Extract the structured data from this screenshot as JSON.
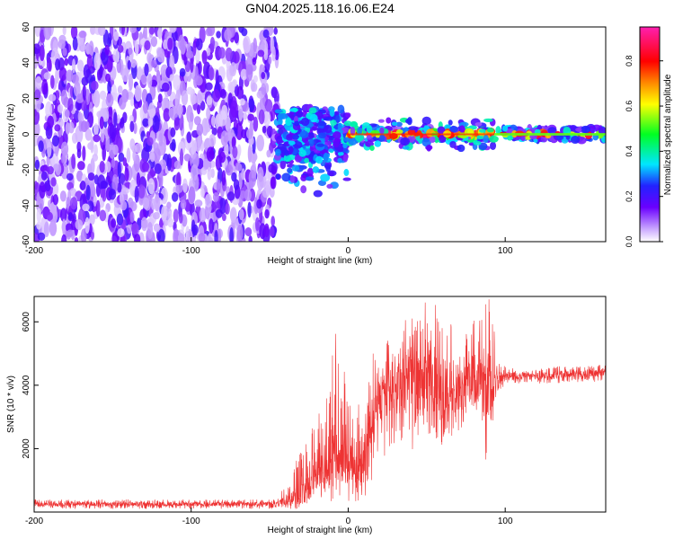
{
  "page": {
    "title": "GN04.2025.118.16.06.E24"
  },
  "colorbar": {
    "label": "Normalized spectral amplitude",
    "ticks": [
      "0.0",
      "0.2",
      "0.4",
      "0.6",
      "0.8"
    ],
    "tick_values": [
      0.0,
      0.2,
      0.4,
      0.6,
      0.8
    ],
    "range": [
      0,
      0.95
    ]
  },
  "chart_data": [
    {
      "type": "heatmap",
      "title": "GN04.2025.118.16.06.E24",
      "xlabel": "Height of straight line (km)",
      "ylabel": "Frequency (Hz)",
      "xlim": [
        -200,
        164
      ],
      "ylim": [
        -60,
        60
      ],
      "x_ticks": [
        -200,
        -100,
        0,
        100
      ],
      "x_tick_labels": [
        "-200",
        "-100",
        "0",
        "100"
      ],
      "y_ticks": [
        -60,
        -40,
        -20,
        0,
        20,
        40,
        60
      ],
      "y_tick_labels": [
        "-60",
        "-40",
        "-20",
        "0",
        "20",
        "40",
        "60"
      ],
      "grid": false,
      "colormap": "white-purple-blue-cyan-green-yellow-red-magenta",
      "regions": [
        {
          "x_range": [
            -200,
            -45
          ],
          "freq_range": [
            -60,
            60
          ],
          "description_level": "noise",
          "amplitude": 0.1
        },
        {
          "x_range": [
            -45,
            0
          ],
          "freq_range": [
            -40,
            12
          ],
          "description_level": "transition",
          "amplitude": 0.25
        },
        {
          "x_range": [
            0,
            93
          ],
          "freq_range": [
            -8,
            8
          ],
          "description_level": "signal-band",
          "amplitude": 0.85
        },
        {
          "x_range": [
            93,
            164
          ],
          "freq_range": [
            -4,
            4
          ],
          "description_level": "steady-band",
          "amplitude": 0.55
        }
      ]
    },
    {
      "type": "line",
      "title": "",
      "xlabel": "Height of straight line (km)",
      "ylabel": "SNR (10 * v/v)",
      "xlim": [
        -200,
        164
      ],
      "ylim": [
        0,
        6800
      ],
      "x_ticks": [
        -200,
        -100,
        0,
        100
      ],
      "x_tick_labels": [
        "-200",
        "-100",
        "0",
        "100"
      ],
      "y_ticks": [
        2000,
        4000,
        6000
      ],
      "y_tick_labels": [
        "2000",
        "4000",
        "6000"
      ],
      "grid": false,
      "color": "#ee3333",
      "envelope": {
        "x": [
          -200,
          -120,
          -45,
          -32,
          -25,
          -20,
          -15,
          -10,
          -5,
          0,
          5,
          10,
          15,
          20,
          25,
          30,
          35,
          40,
          45,
          50,
          55,
          60,
          65,
          70,
          75,
          80,
          85,
          88,
          90,
          92,
          95,
          100,
          110,
          120,
          130,
          140,
          150,
          164
        ],
        "mean": [
          250,
          250,
          250,
          400,
          900,
          1400,
          1600,
          1700,
          1800,
          1600,
          1500,
          1700,
          3500,
          3700,
          3800,
          3900,
          4000,
          3900,
          4000,
          4100,
          4000,
          3900,
          3800,
          3900,
          4100,
          4000,
          4000,
          4000,
          3900,
          4000,
          4200,
          4300,
          4300,
          4300,
          4300,
          4350,
          4350,
          4400
        ],
        "max": [
          400,
          400,
          400,
          1800,
          3000,
          3300,
          3600,
          5500,
          5900,
          3600,
          3700,
          4200,
          5000,
          5300,
          5500,
          5200,
          6200,
          6500,
          6400,
          6700,
          6600,
          6300,
          6000,
          5600,
          5700,
          6100,
          6200,
          6600,
          6800,
          6500,
          4800,
          4600,
          4500,
          4500,
          4600,
          4600,
          4600,
          4700
        ],
        "min": [
          100,
          100,
          100,
          100,
          200,
          200,
          300,
          300,
          400,
          300,
          300,
          400,
          1000,
          1800,
          1600,
          1900,
          2000,
          1900,
          2200,
          2500,
          2300,
          2100,
          2200,
          2500,
          2800,
          3200,
          3000,
          1000,
          2500,
          2800,
          3800,
          4000,
          4050,
          4050,
          4050,
          4100,
          4100,
          4100
        ]
      }
    }
  ]
}
